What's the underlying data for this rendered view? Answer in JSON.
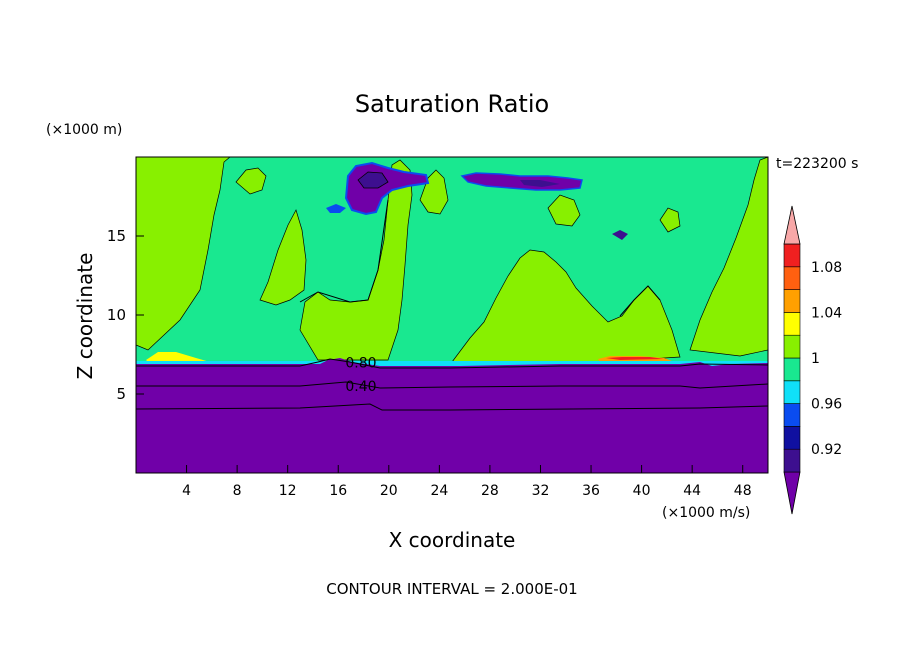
{
  "chart_data": {
    "type": "heatmap",
    "title": "Saturation Ratio",
    "xlabel": "X coordinate",
    "ylabel": "Z coordinate",
    "x_unit": "(×1000 m/s)",
    "y_unit": "(×1000 m)",
    "time_label": "t=223200 s",
    "footer": "CONTOUR INTERVAL = 2.000E-01",
    "xlim": [
      0,
      50
    ],
    "ylim": [
      0,
      20
    ],
    "x_ticks": [
      4,
      8,
      12,
      16,
      20,
      24,
      28,
      32,
      36,
      40,
      44,
      48
    ],
    "y_ticks": [
      5,
      10,
      15
    ],
    "contour_labels": [
      {
        "text": "0.80",
        "x": 17.8,
        "z": 7.0
      },
      {
        "text": "0.40",
        "x": 17.8,
        "z": 5.5
      }
    ],
    "colorbar": {
      "labels": [
        "0.92",
        "0.96",
        "1",
        "1.04",
        "1.08"
      ],
      "label_values": [
        0.92,
        0.96,
        1.0,
        1.04,
        1.08
      ],
      "levels": [
        0.92,
        0.94,
        0.96,
        0.98,
        1.0,
        1.02,
        1.04,
        1.06,
        1.08,
        1.1
      ],
      "colors": [
        "#3d0f8f",
        "#1010a0",
        "#0a4cf0",
        "#10e0f8",
        "#19e890",
        "#88f000",
        "#ffff00",
        "#ffa000",
        "#ff6010",
        "#f02020",
        "#f8a8a8"
      ],
      "under_color": "#7000a8",
      "over_color": "#f8a8a8"
    }
  }
}
